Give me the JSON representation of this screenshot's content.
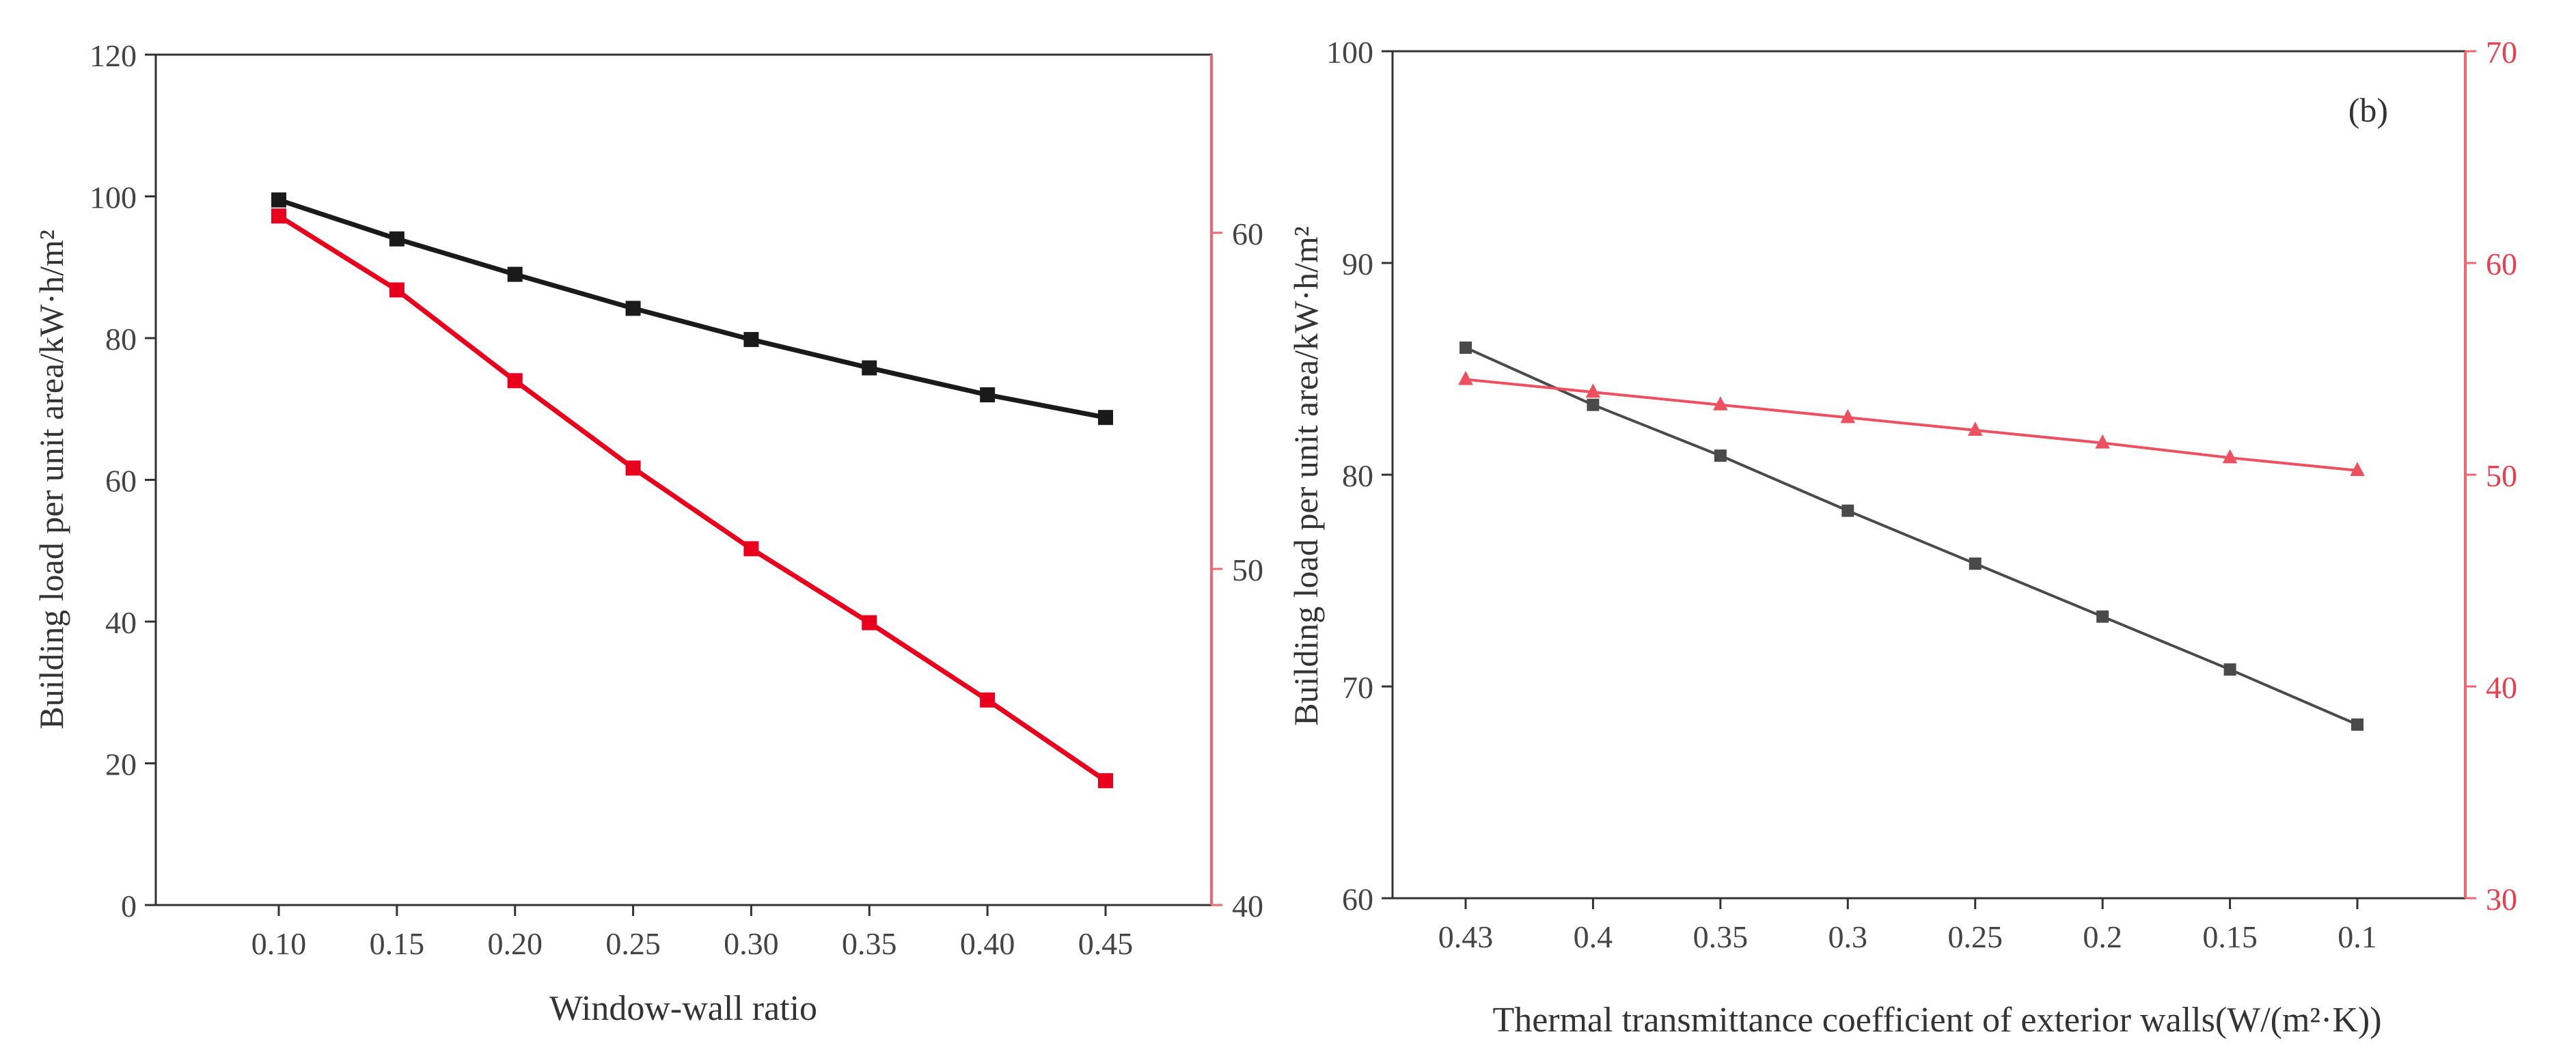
{
  "colors": {
    "black_series": "#1a1a1a",
    "red_series": "#e8001c",
    "red_axis": "#f2646e",
    "gray_series": "#4a4a4a",
    "pink_series": "#ef5060"
  },
  "chart_data": [
    {
      "type": "line",
      "panel_label": "",
      "xlabel": "Window-wall ratio",
      "ylabel": "Building load per unit area/kW·h/m²",
      "y2label": "",
      "categories": [
        "0.10",
        "0.15",
        "0.20",
        "0.25",
        "0.30",
        "0.35",
        "0.40",
        "0.45"
      ],
      "ylim": [
        0,
        120
      ],
      "yticks": [
        "0",
        "20",
        "40",
        "60",
        "80",
        "100",
        "120"
      ],
      "y2lim": [
        40,
        65.3
      ],
      "y2ticks": [
        "40",
        "50",
        "60"
      ],
      "series": [
        {
          "color": "#1a1a1a",
          "marker": "square",
          "axis": "left",
          "values": [
            99.5,
            94.0,
            89.0,
            84.2,
            79.8,
            75.8,
            72.0,
            68.8
          ]
        },
        {
          "color": "#e8001c",
          "marker": "square",
          "axis": "right",
          "values": [
            60.5,
            58.3,
            55.6,
            53.0,
            50.6,
            48.4,
            46.1,
            43.7
          ]
        }
      ],
      "grid": false
    },
    {
      "type": "line",
      "panel_label": "(b)",
      "xlabel": "Thermal transmittance coefficient of exterior walls(W/(m²·K))",
      "ylabel": "Building load per unit area/kW·h/m²",
      "y2label": "",
      "categories": [
        "0.43",
        "0.4",
        "0.35",
        "0.3",
        "0.25",
        "0.2",
        "0.15",
        "0.1"
      ],
      "ylim": [
        60,
        100
      ],
      "yticks": [
        "60",
        "70",
        "80",
        "90",
        "100"
      ],
      "y2lim": [
        30,
        70
      ],
      "y2ticks": [
        "30",
        "40",
        "50",
        "60",
        "70"
      ],
      "series": [
        {
          "color": "#4a4a4a",
          "marker": "square",
          "axis": "left",
          "values": [
            86.0,
            83.3,
            80.9,
            78.3,
            75.8,
            73.3,
            70.8,
            68.2
          ]
        },
        {
          "color": "#ef5060",
          "marker": "triangle",
          "axis": "right",
          "values": [
            54.5,
            53.9,
            53.3,
            52.7,
            52.1,
            51.5,
            50.8,
            50.2
          ]
        }
      ],
      "grid": false
    }
  ]
}
